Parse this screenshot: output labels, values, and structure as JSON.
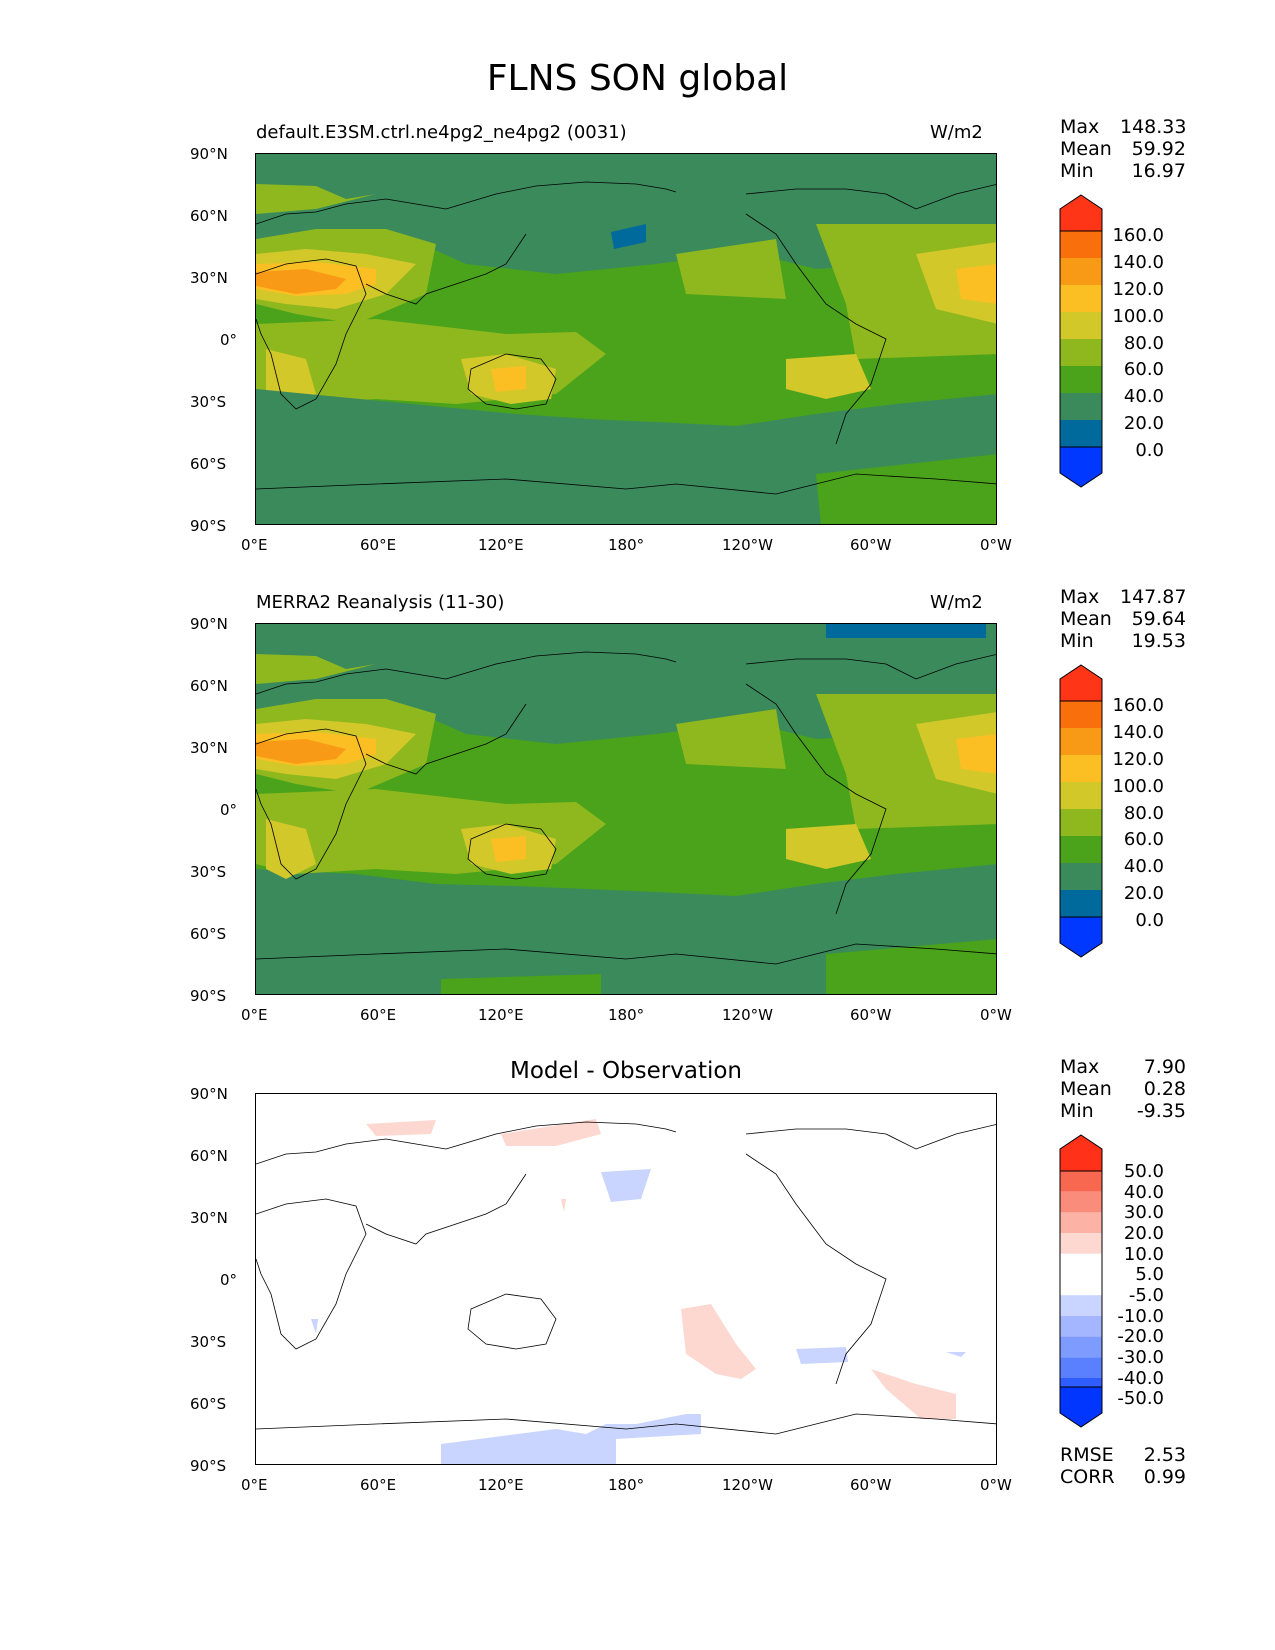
{
  "title": "FLNS SON global",
  "chart_data": [
    {
      "type": "heatmap",
      "title_left": "default.E3SM.ctrl.ne4pg2_ne4pg2 (0031)",
      "title_right": "W/m2",
      "stats": {
        "max_label": "Max",
        "max": "148.33",
        "mean_label": "Mean",
        "mean": "59.92",
        "min_label": "Min",
        "min": "16.97"
      },
      "xticks": [
        "0°E",
        "60°E",
        "120°E",
        "180°",
        "120°W",
        "60°W",
        "0°W"
      ],
      "yticks": [
        "90°N",
        "60°N",
        "30°N",
        "0°",
        "30°S",
        "60°S",
        "90°S"
      ],
      "colorbar_ticks": [
        "160.0",
        "140.0",
        "120.0",
        "100.0",
        "80.0",
        "60.0",
        "40.0",
        "20.0",
        "0.0"
      ]
    },
    {
      "type": "heatmap",
      "title_left": "MERRA2 Reanalysis (11-30)",
      "title_right": "W/m2",
      "stats": {
        "max_label": "Max",
        "max": "147.87",
        "mean_label": "Mean",
        "mean": "59.64",
        "min_label": "Min",
        "min": "19.53"
      },
      "xticks": [
        "0°E",
        "60°E",
        "120°E",
        "180°",
        "120°W",
        "60°W",
        "0°W"
      ],
      "yticks": [
        "90°N",
        "60°N",
        "30°N",
        "0°",
        "30°S",
        "60°S",
        "90°S"
      ],
      "colorbar_ticks": [
        "160.0",
        "140.0",
        "120.0",
        "100.0",
        "80.0",
        "60.0",
        "40.0",
        "20.0",
        "0.0"
      ]
    },
    {
      "type": "heatmap",
      "title_center": "Model - Observation",
      "stats": {
        "max_label": "Max",
        "max": "7.90",
        "mean_label": "Mean",
        "mean": "0.28",
        "min_label": "Min",
        "min": "-9.35"
      },
      "xticks": [
        "0°E",
        "60°E",
        "120°E",
        "180°",
        "120°W",
        "60°W",
        "0°W"
      ],
      "yticks": [
        "90°N",
        "60°N",
        "30°N",
        "0°",
        "30°S",
        "60°S",
        "90°S"
      ],
      "colorbar_ticks": [
        "50.0",
        "40.0",
        "30.0",
        "20.0",
        "10.0",
        "5.0",
        "-5.0",
        "-10.0",
        "-20.0",
        "-30.0",
        "-40.0",
        "-50.0"
      ],
      "rmse_label": "RMSE",
      "rmse": "2.53",
      "corr_label": "CORR",
      "corr": "0.99"
    }
  ],
  "colors": {
    "abs_levels": [
      "#0038ff",
      "#006a9c",
      "#3a8a5c",
      "#4aa31a",
      "#8fb81e",
      "#d2c82a",
      "#fbbf24",
      "#f99a16",
      "#f96f0b",
      "#ff3518"
    ],
    "diff_levels": [
      "#0036ff",
      "#2f5dff",
      "#5a80ff",
      "#7e9bff",
      "#a4b6ff",
      "#cad5ff",
      "#ffffff",
      "#fdd8d0",
      "#fcb3a6",
      "#fa8c7b",
      "#f86850",
      "#ff3118"
    ]
  }
}
